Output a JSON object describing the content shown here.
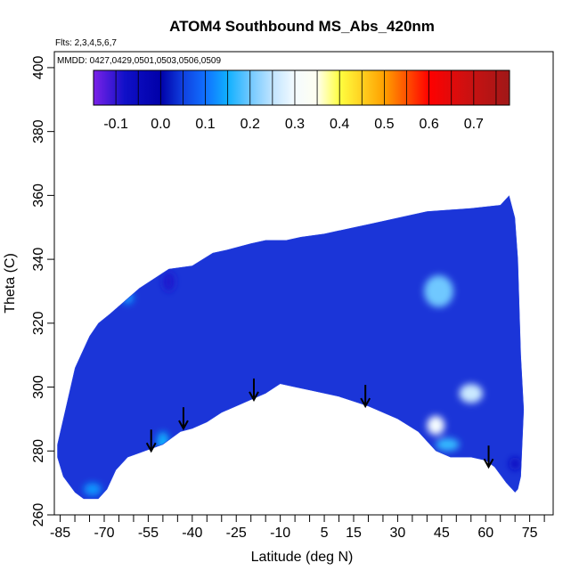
{
  "chart_data": {
    "type": "heatmap",
    "title": "ATOM4 Southbound MS_Abs_420nm",
    "subtitle_flights": "Flts: 2,3,4,5,6,7",
    "subtitle_dates": "MMDD: 0427,0429,0501,0503,0506,0509",
    "xlabel": "Latitude (deg N)",
    "ylabel": "Theta (C)",
    "xlim": [
      -87,
      83
    ],
    "ylim": [
      260,
      405
    ],
    "x_ticks": [
      "-85",
      "-70",
      "-55",
      "-40",
      "-25",
      "-10",
      "5",
      "15",
      "30",
      "45",
      "60",
      "75"
    ],
    "x_tick_values": [
      -85,
      -70,
      -55,
      -40,
      -25,
      -10,
      5,
      15,
      30,
      45,
      60,
      75
    ],
    "x_minor_ticks": [
      -80,
      -75,
      -65,
      -60,
      -50,
      -45,
      -35,
      -30,
      -20,
      -15,
      -5,
      0,
      10,
      20,
      25,
      35,
      40,
      50,
      55,
      65,
      70,
      80
    ],
    "y_ticks": [
      "260",
      "280",
      "300",
      "320",
      "340",
      "360",
      "380",
      "400"
    ],
    "y_tick_values": [
      260,
      280,
      300,
      320,
      340,
      360,
      380,
      400
    ],
    "colorbar": {
      "labels": [
        "-0.1",
        "0.0",
        "0.1",
        "0.2",
        "0.3",
        "0.4",
        "0.5",
        "0.6",
        "0.7"
      ],
      "label_values": [
        -0.1,
        0.0,
        0.1,
        0.2,
        0.3,
        0.4,
        0.5,
        0.6,
        0.7
      ],
      "range": [
        -0.15,
        0.78
      ],
      "stops": [
        {
          "v": -0.15,
          "c": "#7b22e8"
        },
        {
          "v": -0.08,
          "c": "#1010c8"
        },
        {
          "v": 0.0,
          "c": "#0000a8"
        },
        {
          "v": 0.05,
          "c": "#1040e0"
        },
        {
          "v": 0.1,
          "c": "#1070ff"
        },
        {
          "v": 0.15,
          "c": "#10b0ff"
        },
        {
          "v": 0.2,
          "c": "#70c8ff"
        },
        {
          "v": 0.25,
          "c": "#c0e4ff"
        },
        {
          "v": 0.3,
          "c": "#f4fbff"
        },
        {
          "v": 0.35,
          "c": "#fffff0"
        },
        {
          "v": 0.4,
          "c": "#ffff40"
        },
        {
          "v": 0.45,
          "c": "#ffd020"
        },
        {
          "v": 0.5,
          "c": "#ffa000"
        },
        {
          "v": 0.55,
          "c": "#ff5000"
        },
        {
          "v": 0.6,
          "c": "#ff0000"
        },
        {
          "v": 0.68,
          "c": "#d01010"
        },
        {
          "v": 0.78,
          "c": "#a01818"
        }
      ]
    },
    "field": {
      "base_color": "#1b35d8",
      "upper_boundary": [
        [
          -86,
          282
        ],
        [
          -82,
          298
        ],
        [
          -80,
          306
        ],
        [
          -78,
          310
        ],
        [
          -75,
          316
        ],
        [
          -72,
          320
        ],
        [
          -68,
          323
        ],
        [
          -63,
          327
        ],
        [
          -58,
          331
        ],
        [
          -53,
          334
        ],
        [
          -48,
          337
        ],
        [
          -40,
          338
        ],
        [
          -33,
          342
        ],
        [
          -28,
          343
        ],
        [
          -20,
          345
        ],
        [
          -15,
          346
        ],
        [
          -8,
          346
        ],
        [
          -3,
          347
        ],
        [
          5,
          348
        ],
        [
          10,
          349
        ],
        [
          20,
          351
        ],
        [
          30,
          353
        ],
        [
          40,
          355
        ],
        [
          55,
          356
        ],
        [
          65,
          357
        ],
        [
          68,
          360
        ],
        [
          70,
          353
        ],
        [
          71,
          340
        ],
        [
          72,
          310
        ],
        [
          73,
          293
        ]
      ],
      "lower_boundary": [
        [
          73,
          293
        ],
        [
          72,
          272
        ],
        [
          71,
          268
        ],
        [
          70,
          267
        ],
        [
          67,
          270
        ],
        [
          63,
          275
        ],
        [
          60,
          277
        ],
        [
          55,
          278
        ],
        [
          48,
          278
        ],
        [
          43,
          280
        ],
        [
          37,
          286
        ],
        [
          30,
          290
        ],
        [
          20,
          294
        ],
        [
          10,
          297
        ],
        [
          0,
          299
        ],
        [
          -5,
          300
        ],
        [
          -10,
          301
        ],
        [
          -15,
          298
        ],
        [
          -20,
          296
        ],
        [
          -25,
          294
        ],
        [
          -30,
          292
        ],
        [
          -35,
          289
        ],
        [
          -40,
          287
        ],
        [
          -44,
          286
        ],
        [
          -47,
          284
        ],
        [
          -50,
          282
        ],
        [
          -53,
          281
        ],
        [
          -56,
          280
        ],
        [
          -62,
          278
        ],
        [
          -66,
          274
        ],
        [
          -69,
          268
        ],
        [
          -72,
          265
        ],
        [
          -77,
          265
        ],
        [
          -80,
          267
        ],
        [
          -84,
          272
        ],
        [
          -86,
          278
        ]
      ],
      "patches": [
        {
          "lat": 44,
          "theta": 330,
          "rx": 5,
          "ry": 5,
          "value": 0.2
        },
        {
          "lat": 55,
          "theta": 298,
          "rx": 4,
          "ry": 3,
          "value": 0.26
        },
        {
          "lat": 43,
          "theta": 288,
          "rx": 3,
          "ry": 3,
          "value": 0.3
        },
        {
          "lat": 47,
          "theta": 282,
          "rx": 4,
          "ry": 2,
          "value": 0.17
        },
        {
          "lat": -50,
          "theta": 283,
          "rx": 2,
          "ry": 3,
          "value": 0.15
        },
        {
          "lat": -48,
          "theta": 333,
          "rx": 2,
          "ry": 3,
          "value": -0.09
        },
        {
          "lat": -62,
          "theta": 328,
          "rx": 2,
          "ry": 2,
          "value": 0.13
        },
        {
          "lat": 70,
          "theta": 276,
          "rx": 2,
          "ry": 2,
          "value": -0.07
        },
        {
          "lat": -74,
          "theta": 268,
          "rx": 3,
          "ry": 2,
          "value": 0.13
        }
      ]
    },
    "arrows": [
      {
        "lat": -54,
        "theta": 280
      },
      {
        "lat": -43,
        "theta": 287
      },
      {
        "lat": -19,
        "theta": 296
      },
      {
        "lat": 19,
        "theta": 294
      },
      {
        "lat": 61,
        "theta": 275
      }
    ]
  }
}
